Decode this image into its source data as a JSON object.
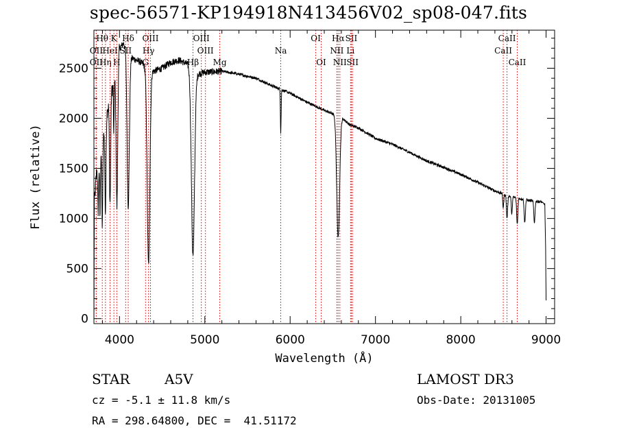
{
  "title": "spec-56571-KP194918N413456V02_sp08-047.fits",
  "info": {
    "class": "STAR",
    "subclass": "A5V",
    "survey": "LAMOST DR3",
    "cz": "cz = -5.1 ± 11.8 km/s",
    "obs_date": "Obs-Date: 20131005",
    "radec": "RA = 298.64800, DEC =  41.51172"
  },
  "chart_data": {
    "type": "line",
    "title": "spec-56571-KP194918N413456V02_sp08-047.fits",
    "xlabel": "Wavelength (Å)",
    "ylabel": "Flux (relative)",
    "xlim": [
      3700,
      9100
    ],
    "ylim": [
      -50,
      2880
    ],
    "xticks": [
      4000,
      5000,
      6000,
      7000,
      8000,
      9000
    ],
    "yticks": [
      0,
      500,
      1000,
      1500,
      2000,
      2500
    ],
    "continuum": [
      [
        3700,
        1100
      ],
      [
        3730,
        1450
      ],
      [
        3760,
        1650
      ],
      [
        3800,
        1750
      ],
      [
        3850,
        2050
      ],
      [
        3900,
        2250
      ],
      [
        3950,
        2400
      ],
      [
        4000,
        2700
      ],
      [
        4050,
        2750
      ],
      [
        4100,
        2620
      ],
      [
        4150,
        2600
      ],
      [
        4200,
        2580
      ],
      [
        4250,
        2560
      ],
      [
        4300,
        2520
      ],
      [
        4400,
        2470
      ],
      [
        4500,
        2500
      ],
      [
        4600,
        2560
      ],
      [
        4700,
        2580
      ],
      [
        4800,
        2540
      ],
      [
        4900,
        2440
      ],
      [
        5000,
        2460
      ],
      [
        5200,
        2470
      ],
      [
        5400,
        2440
      ],
      [
        5600,
        2400
      ],
      [
        5800,
        2320
      ],
      [
        6000,
        2250
      ],
      [
        6200,
        2160
      ],
      [
        6400,
        2080
      ],
      [
        6600,
        2010
      ],
      [
        6700,
        1935
      ],
      [
        6800,
        1905
      ],
      [
        7000,
        1800
      ],
      [
        7200,
        1740
      ],
      [
        7400,
        1660
      ],
      [
        7600,
        1575
      ],
      [
        7800,
        1510
      ],
      [
        8000,
        1440
      ],
      [
        8200,
        1360
      ],
      [
        8400,
        1275
      ],
      [
        8600,
        1215
      ],
      [
        8800,
        1180
      ],
      [
        8950,
        1165
      ],
      [
        8985,
        1140
      ],
      [
        8995,
        700
      ],
      [
        9000,
        180
      ]
    ],
    "absorption": [
      {
        "center": 3750,
        "depth": 500,
        "width": 8
      },
      {
        "center": 3771,
        "depth": 650,
        "width": 7
      },
      {
        "center": 3798,
        "depth": 800,
        "width": 8
      },
      {
        "center": 3835,
        "depth": 900,
        "width": 9
      },
      {
        "center": 3889,
        "depth": 1050,
        "width": 10
      },
      {
        "center": 3933,
        "depth": 550,
        "width": 5
      },
      {
        "center": 3970,
        "depth": 1400,
        "width": 13
      },
      {
        "center": 4102,
        "depth": 1500,
        "width": 18
      },
      {
        "center": 4340,
        "depth": 1950,
        "width": 22
      },
      {
        "center": 4861,
        "depth": 1850,
        "width": 26
      },
      {
        "center": 5890,
        "depth": 430,
        "width": 6
      },
      {
        "center": 6563,
        "depth": 1220,
        "width": 24
      },
      {
        "center": 8498,
        "depth": 140,
        "width": 8
      },
      {
        "center": 8542,
        "depth": 230,
        "width": 10
      },
      {
        "center": 8598,
        "depth": 180,
        "width": 8
      },
      {
        "center": 8662,
        "depth": 260,
        "width": 10
      },
      {
        "center": 8750,
        "depth": 230,
        "width": 10
      },
      {
        "center": 8863,
        "depth": 210,
        "width": 10
      }
    ],
    "line_markers": [
      {
        "label": "Hθ",
        "x": 3798,
        "row": 0
      },
      {
        "label": "K",
        "x": 3934,
        "row": 0
      },
      {
        "label": "Hδ",
        "x": 4102,
        "row": 0
      },
      {
        "label": "OIII",
        "x": 4363,
        "row": 0
      },
      {
        "label": "OIII",
        "x": 4959,
        "row": 0
      },
      {
        "label": "OI",
        "x": 6300,
        "row": 0
      },
      {
        "label": "Hα",
        "x": 6563,
        "row": 0
      },
      {
        "label": "SII",
        "x": 6717,
        "row": 0
      },
      {
        "label": "CaII",
        "x": 8542,
        "row": 0
      },
      {
        "label": "OII",
        "x": 3727,
        "row": 1
      },
      {
        "label": "HeI",
        "x": 3889,
        "row": 1
      },
      {
        "label": "SII",
        "x": 4072,
        "row": 1
      },
      {
        "label": "Hγ",
        "x": 4340,
        "row": 1
      },
      {
        "label": "OIII",
        "x": 5007,
        "row": 1
      },
      {
        "label": "Na",
        "x": 5890,
        "row": 1
      },
      {
        "label": "NII",
        "x": 6548,
        "row": 1
      },
      {
        "label": "Li",
        "x": 6708,
        "row": 1
      },
      {
        "label": "CaII",
        "x": 8498,
        "row": 1
      },
      {
        "label": "OII",
        "x": 3727,
        "row": 2
      },
      {
        "label": "Hη",
        "x": 3835,
        "row": 2
      },
      {
        "label": "H",
        "x": 3968,
        "row": 2
      },
      {
        "label": "G",
        "x": 4305,
        "row": 2
      },
      {
        "label": "Hβ",
        "x": 4861,
        "row": 2
      },
      {
        "label": "Mg",
        "x": 5175,
        "row": 2
      },
      {
        "label": "OI",
        "x": 6364,
        "row": 2
      },
      {
        "label": "NII",
        "x": 6583,
        "row": 2
      },
      {
        "label": "SII",
        "x": 6731,
        "row": 2
      },
      {
        "label": "CaII",
        "x": 8662,
        "row": 2
      }
    ],
    "marker_color": "#cc0000",
    "line_color": "#000000"
  }
}
